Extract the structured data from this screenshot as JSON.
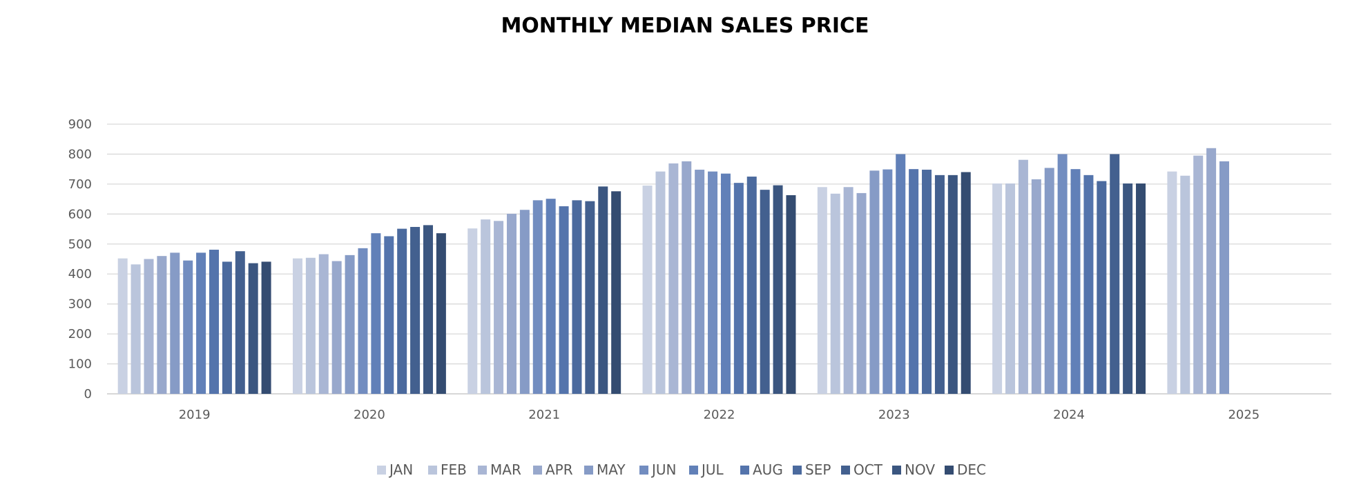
{
  "chart_data": {
    "type": "bar",
    "title": "MONTHLY MEDIAN SALES PRICE",
    "xlabel": "",
    "ylabel": "",
    "ylim": [
      0,
      900
    ],
    "yticks": [
      "0",
      "100",
      "200",
      "300",
      "400",
      "500",
      "600",
      "700",
      "800",
      "900"
    ],
    "categories": [
      "2019",
      "2020",
      "2021",
      "2022",
      "2023",
      "2024",
      "2025"
    ],
    "grid": true,
    "legend_position": "bottom",
    "series": [
      {
        "name": "JAN",
        "color": "#c9d1e3",
        "values": [
          452,
          452,
          552,
          695,
          690,
          702,
          742
        ]
      },
      {
        "name": "FEB",
        "color": "#bac5dc",
        "values": [
          432,
          454,
          582,
          742,
          668,
          702,
          728
        ]
      },
      {
        "name": "MAR",
        "color": "#a9b6d4",
        "values": [
          450,
          466,
          577,
          769,
          690,
          781,
          795
        ]
      },
      {
        "name": "APR",
        "color": "#98a8cc",
        "values": [
          460,
          443,
          601,
          776,
          670,
          716,
          820
        ]
      },
      {
        "name": "MAY",
        "color": "#869bc6",
        "values": [
          471,
          463,
          614,
          748,
          745,
          754,
          776
        ]
      },
      {
        "name": "JUN",
        "color": "#728dc0",
        "values": [
          445,
          486,
          646,
          742,
          749,
          800,
          null
        ]
      },
      {
        "name": "JUL",
        "color": "#6180b8",
        "values": [
          471,
          536,
          651,
          735,
          800,
          750,
          null
        ]
      },
      {
        "name": "AUG",
        "color": "#5474ac",
        "values": [
          481,
          526,
          626,
          704,
          750,
          730,
          null
        ]
      },
      {
        "name": "SEP",
        "color": "#4b6a9e",
        "values": [
          441,
          551,
          646,
          725,
          748,
          710,
          null
        ]
      },
      {
        "name": "OCT",
        "color": "#43608f",
        "values": [
          476,
          557,
          643,
          681,
          730,
          800,
          null
        ]
      },
      {
        "name": "NOV",
        "color": "#3b5680",
        "values": [
          436,
          563,
          692,
          696,
          730,
          702,
          null
        ]
      },
      {
        "name": "DEC",
        "color": "#344c71",
        "values": [
          441,
          536,
          676,
          663,
          740,
          702,
          null
        ]
      }
    ]
  }
}
